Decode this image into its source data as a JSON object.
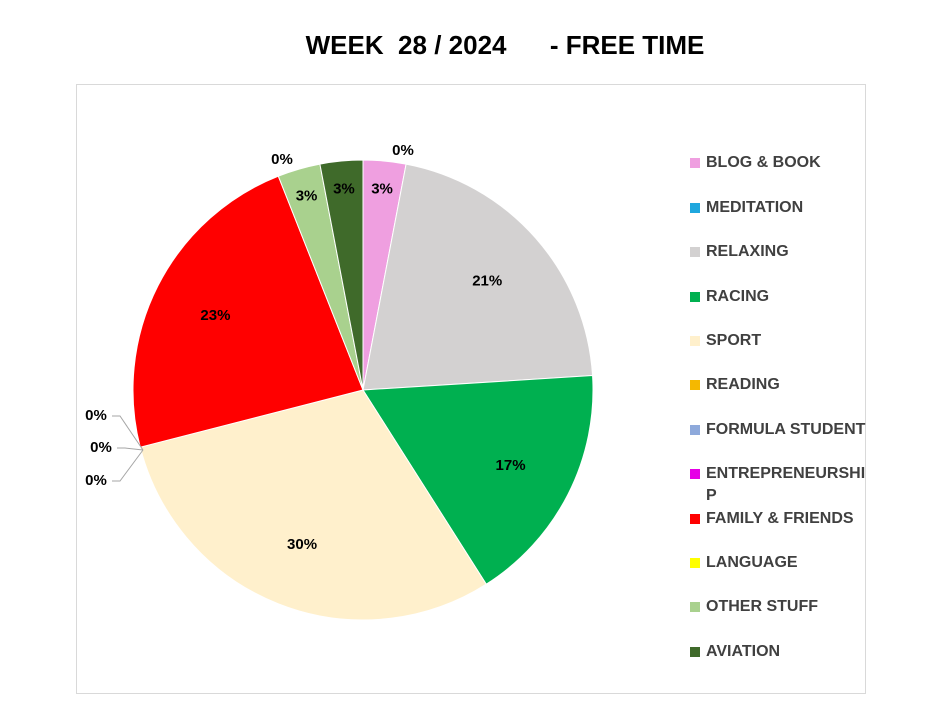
{
  "title": "WEEK  28 / 2024      - FREE TIME",
  "chart_data": {
    "type": "pie",
    "title": "WEEK  28 / 2024      - FREE TIME",
    "start_angle_deg": 0,
    "direction": "clockwise",
    "legend_position": "right",
    "slices": [
      {
        "label": "BLOG & BOOK",
        "value": 3,
        "color": "#ef9fe0",
        "data_label": "3%"
      },
      {
        "label": "MEDITATION",
        "value": 0,
        "color": "#1fa7de",
        "data_label": "0%"
      },
      {
        "label": "RELAXING",
        "value": 21,
        "color": "#d3d1d1",
        "data_label": "21%"
      },
      {
        "label": "RACING",
        "value": 17,
        "color": "#00b050",
        "data_label": "17%"
      },
      {
        "label": "SPORT",
        "value": 30,
        "color": "#fff0cc",
        "data_label": "30%"
      },
      {
        "label": "READING",
        "value": 0,
        "color": "#f5b800",
        "data_label": "0%"
      },
      {
        "label": "FORMULA STUDENT",
        "value": 0,
        "color": "#8ea9db",
        "data_label": "0%"
      },
      {
        "label": "ENTREPRENEURSHIP",
        "value": 0,
        "color": "#e600e6",
        "data_label": "0%"
      },
      {
        "label": "FAMILY & FRIENDS",
        "value": 23,
        "color": "#ff0000",
        "data_label": "23%"
      },
      {
        "label": "LANGUAGE",
        "value": 0,
        "color": "#ffff00",
        "data_label": "0%"
      },
      {
        "label": "OTHER STUFF",
        "value": 3,
        "color": "#a9d18e",
        "data_label": "3%"
      },
      {
        "label": "AVIATION",
        "value": 3,
        "color": "#3f6a2a",
        "data_label": "3%"
      }
    ]
  }
}
